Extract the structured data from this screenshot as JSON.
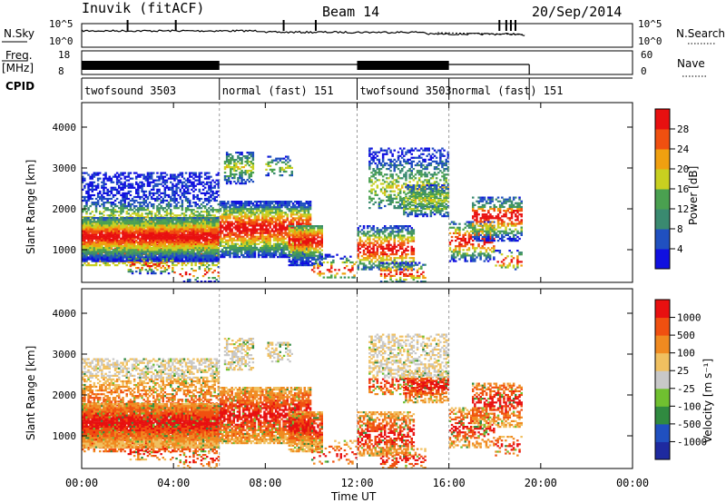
{
  "header": {
    "station": "Inuvik (fitACF)",
    "beam": "Beam 14",
    "date": "20/Sep/2014"
  },
  "left_labels": {
    "nsky": "N.Sky",
    "freq": "Freq.",
    "mhz": "[MHz]",
    "cpid": "CPID"
  },
  "right_labels": {
    "nsearch": "N.Search",
    "nave": "Nave"
  },
  "chart_data": [
    {
      "type": "line",
      "name": "noise",
      "yticks_left": [
        "10^5",
        "10^0"
      ],
      "yticks_right": [
        "10^5",
        "10^0"
      ]
    },
    {
      "type": "line",
      "name": "frequency",
      "yticks_left": [
        "18",
        "8"
      ],
      "yticks_right": [
        "60",
        "0"
      ]
    },
    {
      "type": "table",
      "name": "cpid",
      "segments": [
        {
          "label": "twofsound 3503",
          "start": 0,
          "end": 6
        },
        {
          "label": "normal (fast) 151",
          "start": 6,
          "end": 12
        },
        {
          "label": "twofsound 3503",
          "start": 12,
          "end": 16
        },
        {
          "label": "normal (fast) 151",
          "start": 16,
          "end": 19.5
        }
      ]
    },
    {
      "type": "heatmap",
      "name": "power",
      "ylabel": "Slant Range [km]",
      "yticks": [
        "1000",
        "2000",
        "3000",
        "4000"
      ],
      "ylim": [
        200,
        4600
      ],
      "colorbar_label": "Power [dB]",
      "colorbar_ticks": [
        "4",
        "8",
        "12",
        "16",
        "20",
        "24",
        "28"
      ],
      "colors": [
        "#1010e0",
        "#2050c0",
        "#3a8a70",
        "#4aa050",
        "#c8d020",
        "#f0a010",
        "#f05010",
        "#e81010"
      ]
    },
    {
      "type": "heatmap",
      "name": "velocity",
      "ylabel": "Slant Range [km]",
      "yticks": [
        "1000",
        "2000",
        "3000",
        "4000"
      ],
      "ylim": [
        200,
        4600
      ],
      "colorbar_label": "Velocity [m s⁻¹]",
      "colorbar_ticks": [
        "1000",
        "500",
        "100",
        "25",
        "-25",
        "-100",
        "-500",
        "-1000"
      ],
      "colors": [
        "#1e2aa0",
        "#2050c0",
        "#308a40",
        "#70c030",
        "#c8c8c8",
        "#f0c060",
        "#f08a20",
        "#f05010",
        "#e81010"
      ]
    }
  ],
  "time_axis": {
    "label": "Time UT",
    "ticks": [
      "00:00",
      "04:00",
      "08:00",
      "12:00",
      "16:00",
      "20:00",
      "00:00"
    ]
  }
}
